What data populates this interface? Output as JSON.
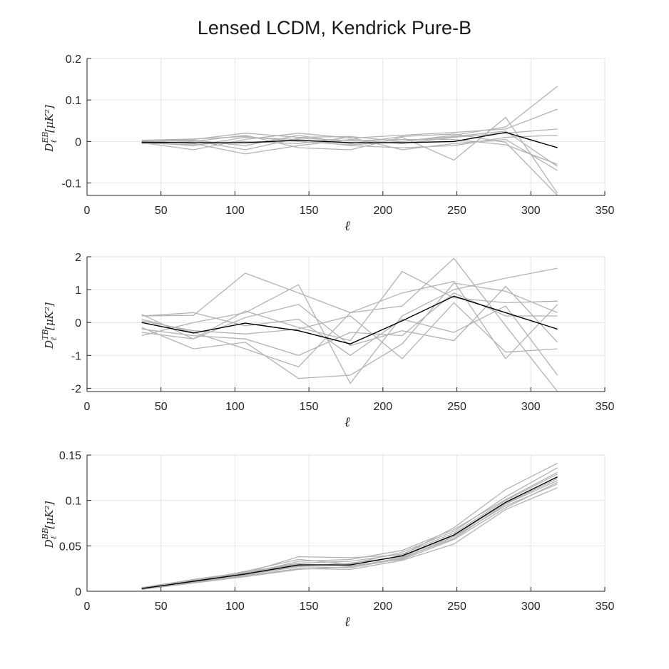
{
  "title": "Lensed LCDM, Kendrick Pure-B",
  "chart_data": [
    {
      "type": "line",
      "panel": "EB",
      "xlabel": "ℓ",
      "ylabel": {
        "base": "D",
        "sub": "ℓ",
        "sup": "EB",
        "unit": "[μK²]"
      },
      "xlim": [
        0,
        350
      ],
      "ylim": [
        -0.13,
        0.2
      ],
      "xticks": [
        0,
        50,
        100,
        150,
        200,
        250,
        300,
        350
      ],
      "yticks": [
        0.2,
        0.1,
        0,
        -0.1
      ],
      "ytick_labels": [
        "0.2",
        "0.1",
        "0",
        "-0.1"
      ],
      "grid": true,
      "x": [
        37,
        72,
        107,
        143,
        178,
        213,
        248,
        283,
        318
      ],
      "mean": [
        -0.002,
        -0.003,
        -0.003,
        0.003,
        -0.003,
        -0.003,
        0.0,
        0.022,
        -0.015
      ],
      "realizations": [
        [
          0.0,
          0.005,
          0.02,
          0.01,
          0.012,
          0.0,
          0.015,
          0.035,
          0.133
        ],
        [
          -0.003,
          -0.02,
          0.005,
          0.02,
          0.008,
          0.015,
          0.022,
          0.03,
          0.078
        ],
        [
          0.002,
          -0.005,
          -0.03,
          -0.01,
          0.005,
          -0.005,
          0.01,
          0.02,
          0.03
        ],
        [
          -0.005,
          0.0,
          0.015,
          -0.015,
          -0.02,
          0.01,
          -0.045,
          0.058,
          -0.125
        ],
        [
          0.001,
          0.003,
          -0.01,
          0.015,
          -0.005,
          0.012,
          0.018,
          -0.002,
          -0.13
        ],
        [
          -0.002,
          -0.01,
          0.01,
          0.005,
          -0.01,
          -0.015,
          -0.01,
          0.01,
          0.015
        ],
        [
          0.0,
          0.002,
          -0.02,
          0.008,
          0.002,
          0.005,
          0.005,
          -0.008,
          -0.055
        ],
        [
          -0.004,
          -0.008,
          0.0,
          -0.005,
          0.01,
          -0.02,
          -0.005,
          0.005,
          -0.07
        ],
        [
          0.003,
          0.006,
          0.012,
          0.0,
          -0.008,
          0.0,
          0.012,
          0.025,
          -0.06
        ]
      ]
    },
    {
      "type": "line",
      "panel": "TB",
      "xlabel": "ℓ",
      "ylabel": {
        "base": "D",
        "sub": "ℓ",
        "sup": "TB",
        "unit": "[μK²]"
      },
      "xlim": [
        0,
        350
      ],
      "ylim": [
        -2.1,
        2
      ],
      "xticks": [
        0,
        50,
        100,
        150,
        200,
        250,
        300,
        350
      ],
      "yticks": [
        2,
        1,
        0,
        -1,
        -2
      ],
      "ytick_labels": [
        "2",
        "1",
        "0",
        "-1",
        "-2"
      ],
      "grid": true,
      "x": [
        37,
        72,
        107,
        143,
        178,
        213,
        248,
        283,
        318
      ],
      "mean": [
        0.0,
        -0.32,
        -0.02,
        -0.25,
        -0.65,
        0.05,
        0.8,
        0.3,
        -0.2
      ],
      "realizations": [
        [
          0.2,
          0.22,
          1.5,
          0.9,
          0.3,
          0.5,
          1.95,
          -0.1,
          -2.1
        ],
        [
          -0.4,
          0.0,
          0.3,
          1.15,
          -1.85,
          0.2,
          1.0,
          1.35,
          1.65
        ],
        [
          0.25,
          -0.5,
          0.35,
          -0.15,
          -0.55,
          1.55,
          0.75,
          0.6,
          0.65
        ],
        [
          -0.15,
          -0.8,
          -0.6,
          -1.7,
          -1.6,
          -0.65,
          1.2,
          0.95,
          0.3
        ],
        [
          0.1,
          -0.3,
          -0.8,
          -1.35,
          0.3,
          0.9,
          1.25,
          -1.1,
          0.55
        ],
        [
          -0.3,
          -0.5,
          0.15,
          0.55,
          -0.7,
          -0.25,
          -0.55,
          1.1,
          -0.6
        ],
        [
          0.05,
          -0.25,
          -0.35,
          -0.2,
          0.2,
          -1.1,
          0.6,
          -0.9,
          -0.8
        ],
        [
          0.2,
          0.3,
          -0.1,
          0.1,
          -1.0,
          0.1,
          -0.3,
          0.5,
          -1.6
        ],
        [
          -0.2,
          -0.4,
          -0.5,
          -1.0,
          -0.3,
          -0.4,
          0.9,
          0.2,
          0.2
        ]
      ]
    },
    {
      "type": "line",
      "panel": "BB",
      "xlabel": "ℓ",
      "ylabel": {
        "base": "D",
        "sub": "ℓ",
        "sup": "BB",
        "unit": "[μK²]"
      },
      "xlim": [
        0,
        350
      ],
      "ylim": [
        0,
        0.15
      ],
      "xticks": [
        0,
        50,
        100,
        150,
        200,
        250,
        300,
        350
      ],
      "yticks": [
        0.15,
        0.1,
        0.05,
        0
      ],
      "ytick_labels": [
        "0.15",
        "0.1",
        "0.05",
        "0"
      ],
      "grid": true,
      "x": [
        37,
        72,
        107,
        143,
        178,
        213,
        248,
        283,
        318
      ],
      "mean": [
        0.003,
        0.011,
        0.019,
        0.029,
        0.029,
        0.039,
        0.062,
        0.098,
        0.126
      ],
      "realizations": [
        [
          0.003,
          0.012,
          0.02,
          0.038,
          0.037,
          0.04,
          0.07,
          0.112,
          0.141
        ],
        [
          0.002,
          0.01,
          0.017,
          0.025,
          0.024,
          0.034,
          0.052,
          0.09,
          0.114
        ],
        [
          0.003,
          0.011,
          0.022,
          0.035,
          0.03,
          0.043,
          0.066,
          0.104,
          0.136
        ],
        [
          0.003,
          0.01,
          0.018,
          0.027,
          0.026,
          0.036,
          0.06,
          0.094,
          0.118
        ],
        [
          0.004,
          0.013,
          0.021,
          0.031,
          0.033,
          0.041,
          0.064,
          0.1,
          0.129
        ],
        [
          0.002,
          0.009,
          0.016,
          0.024,
          0.027,
          0.037,
          0.058,
          0.096,
          0.122
        ],
        [
          0.003,
          0.012,
          0.019,
          0.033,
          0.035,
          0.045,
          0.068,
          0.101,
          0.131
        ],
        [
          0.003,
          0.011,
          0.018,
          0.028,
          0.031,
          0.038,
          0.061,
          0.097,
          0.124
        ],
        [
          0.003,
          0.01,
          0.02,
          0.03,
          0.028,
          0.035,
          0.057,
          0.092,
          0.12
        ]
      ]
    }
  ]
}
